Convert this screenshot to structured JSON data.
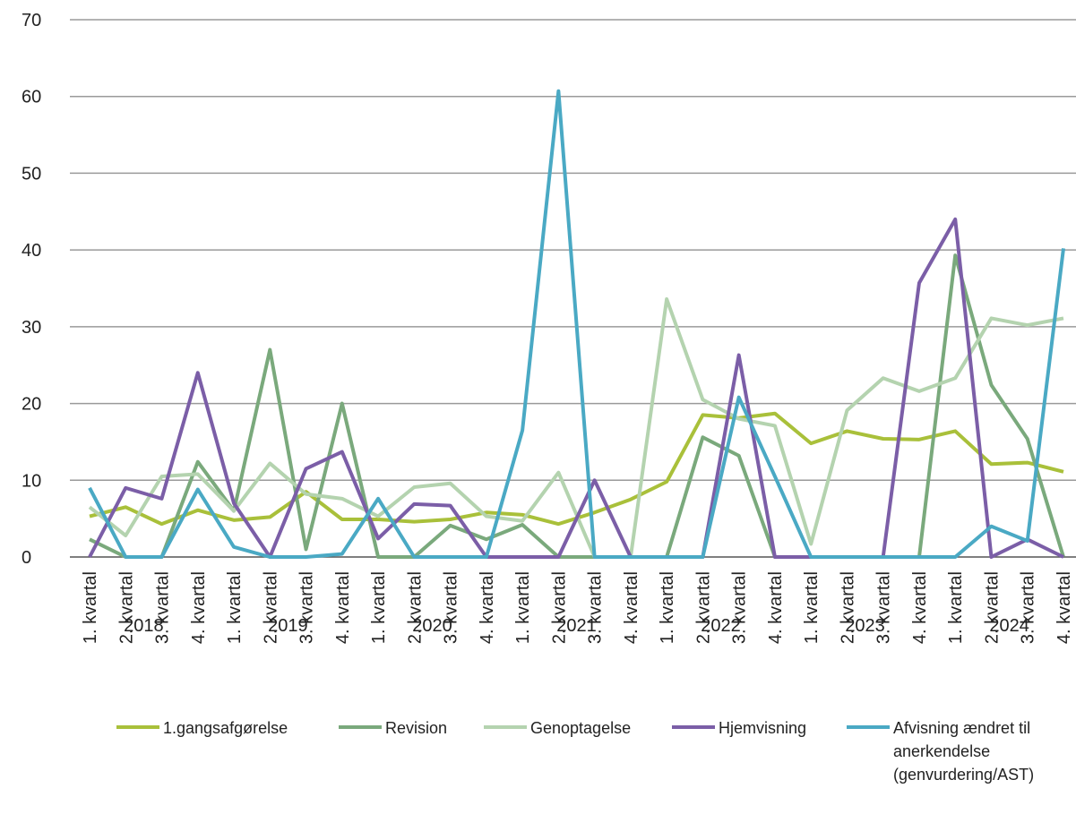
{
  "chart_data": {
    "type": "line",
    "categories": [
      "1. kvartal",
      "2. kvartal",
      "3. kvartal",
      "4. kvartal",
      "1. kvartal",
      "2. kvartal",
      "3. kvartal",
      "4. kvartal",
      "1. kvartal",
      "2. kvartal",
      "3. kvartal",
      "4. kvartal",
      "1. kvartal",
      "2. kvartal",
      "3. kvartal",
      "4. kvartal",
      "1. kvartal",
      "2. kvartal",
      "3. kvartal",
      "4. kvartal",
      "1. kvartal",
      "2. kvartal",
      "3. kvartal",
      "4. kvartal",
      "1. kvartal",
      "2. kvartal",
      "3. kvartal",
      "4. kvartal"
    ],
    "groups": [
      "2018",
      "2019",
      "2020",
      "2021",
      "2022",
      "2023",
      "2024"
    ],
    "series": [
      {
        "name": "1.gangsafgørelse",
        "color": "#a9c03a",
        "values": [
          5.3,
          6.5,
          4.3,
          6.1,
          4.8,
          5.2,
          8.5,
          4.9,
          4.9,
          4.6,
          4.9,
          5.8,
          5.5,
          4.3,
          5.8,
          7.5,
          9.8,
          18.5,
          18.1,
          18.7,
          14.8,
          16.4,
          15.4,
          15.3,
          16.4,
          12.1,
          12.3,
          11.1
        ]
      },
      {
        "name": "Revision",
        "color": "#7aa97c",
        "values": [
          2.3,
          0,
          0,
          12.4,
          6,
          27,
          1,
          20,
          0,
          0,
          4.1,
          2.3,
          4.2,
          0,
          0,
          0,
          0,
          15.6,
          13.2,
          0,
          0,
          0,
          0,
          0,
          39.3,
          22.4,
          15.4,
          0
        ]
      },
      {
        "name": "Genoptagelse",
        "color": "#b4d3af",
        "values": [
          6.5,
          2.8,
          10.5,
          10.8,
          6,
          12.2,
          8.2,
          7.6,
          5.3,
          9.1,
          9.6,
          5.3,
          4.7,
          11,
          0,
          0,
          33.6,
          20.5,
          18,
          17.1,
          1.7,
          19.1,
          23.3,
          21.6,
          23.3,
          31.1,
          30.2,
          31.1
        ]
      },
      {
        "name": "Hjemvisning",
        "color": "#7b5ea7",
        "values": [
          0,
          9,
          7.6,
          24,
          7,
          0,
          11.5,
          13.7,
          2.4,
          6.9,
          6.7,
          0,
          0,
          0,
          10,
          0,
          0,
          0,
          26.3,
          0,
          0,
          0,
          0,
          35.7,
          44,
          0,
          2.3,
          0
        ]
      },
      {
        "name": "Afvisning ændret til anerkendelse (genvurdering/AST)",
        "color": "#4aa9c4",
        "values": [
          9,
          0,
          0,
          8.8,
          1.3,
          0,
          0,
          0.4,
          7.6,
          0,
          0,
          0,
          16.5,
          60.7,
          0,
          0,
          0,
          0,
          20.8,
          10.5,
          0,
          0,
          0,
          0,
          0,
          4,
          2.1,
          40.2
        ]
      }
    ],
    "ylim": [
      0,
      70
    ],
    "yticks": [
      0,
      10,
      20,
      30,
      40,
      50,
      60,
      70
    ],
    "grid": true
  }
}
